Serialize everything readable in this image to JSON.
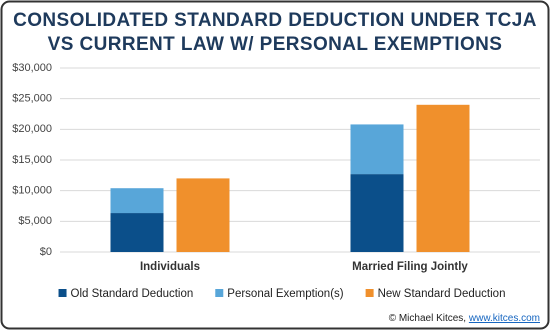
{
  "chart_data": {
    "type": "bar",
    "title": [
      "CONSOLIDATED STANDARD DEDUCTION UNDER TCJA",
      "VS CURRENT LAW W/ PERSONAL EXEMPTIONS"
    ],
    "categories": [
      "Individuals",
      "Married Filing Jointly"
    ],
    "series": [
      {
        "name": "Old Standard Deduction",
        "color": "#0b4f8a",
        "stack": 0,
        "values": [
          6350,
          12700
        ]
      },
      {
        "name": "Personal Exemption(s)",
        "color": "#58a6d9",
        "stack": 0,
        "values": [
          4050,
          8100
        ]
      },
      {
        "name": "New Standard Deduction",
        "color": "#f0902c",
        "stack": 1,
        "values": [
          12000,
          24000
        ]
      }
    ],
    "ylim": [
      0,
      30000
    ],
    "yticks": [
      {
        "value": 0,
        "label": "$0"
      },
      {
        "value": 5000,
        "label": "$5,000"
      },
      {
        "value": 10000,
        "label": "$10,000"
      },
      {
        "value": 15000,
        "label": "$15,000"
      },
      {
        "value": 20000,
        "label": "$20,000"
      },
      {
        "value": 25000,
        "label": "$25,000"
      },
      {
        "value": 30000,
        "label": "$30,000"
      }
    ],
    "grid": true,
    "legend": "bottom",
    "source": "© Michael Kitces,",
    "source_link": "www.kitces.com"
  }
}
